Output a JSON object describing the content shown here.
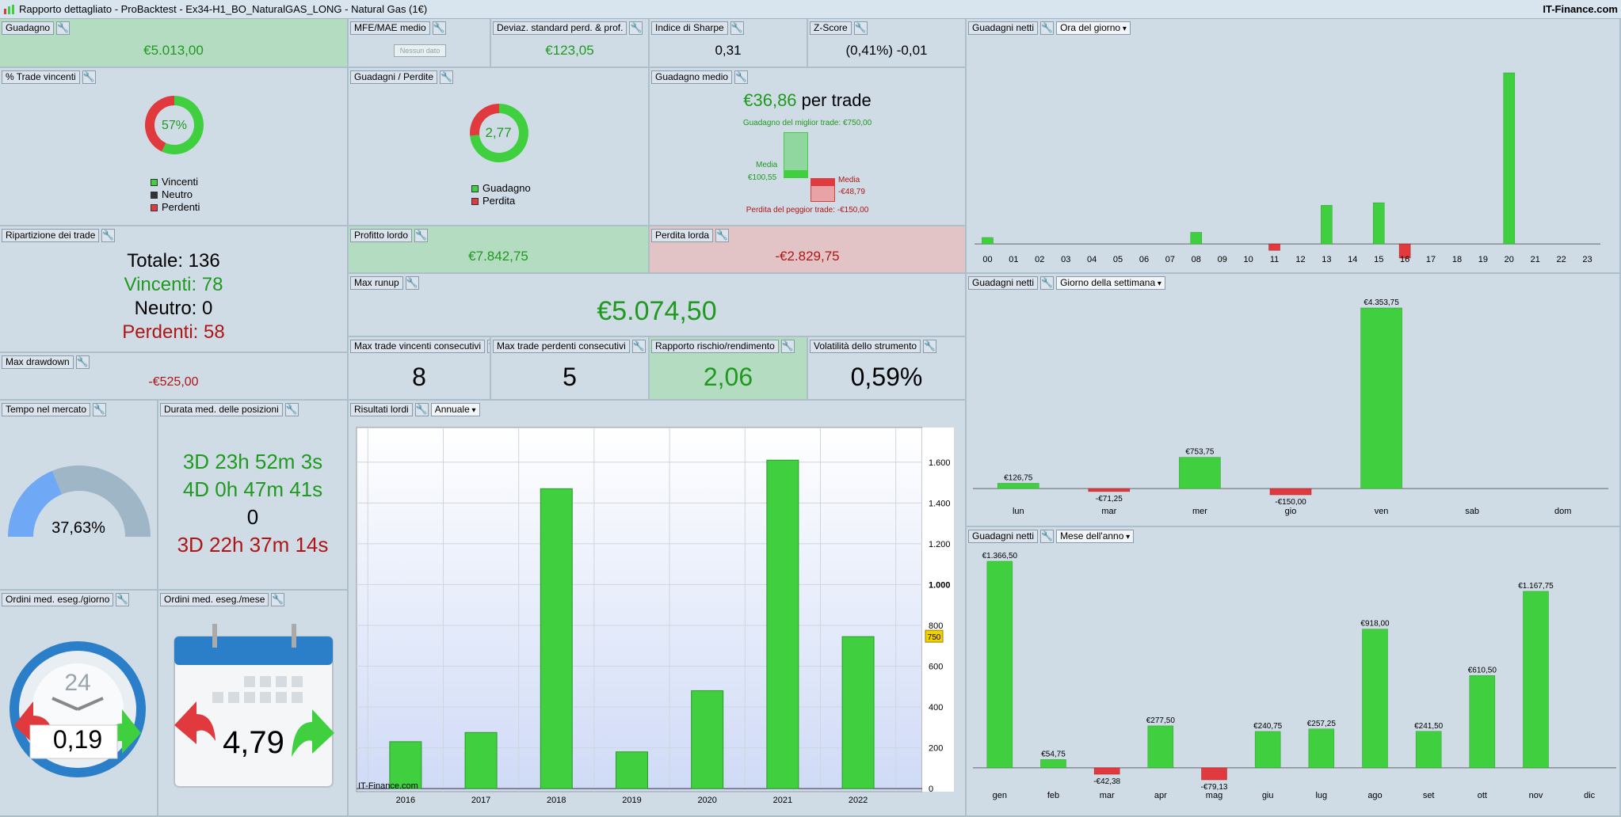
{
  "window": {
    "title": "Rapporto dettagliato - ProBacktest - Ex34-H1_BO_NaturalGAS_LONG - Natural Gas (1€)",
    "brand": "IT-Finance.com"
  },
  "colors": {
    "green": "#3fcf3f",
    "red": "#e0393e",
    "gauge_blue": "#6fa8f4",
    "gauge_gray": "#9fb6c6"
  },
  "guadagno": {
    "label": "Guadagno",
    "value": "€5.013,00"
  },
  "mfe": {
    "label": "MFE/MAE medio",
    "button": "Nessun dato"
  },
  "deviaz": {
    "label": "Deviaz. standard perd. & prof.",
    "value": "€123,05"
  },
  "sharpe": {
    "label": "Indice di Sharpe",
    "value": "0,31"
  },
  "zscore": {
    "label": "Z-Score",
    "value": "(0,41%) -0,01"
  },
  "trade_vincenti": {
    "label": "% Trade vincenti",
    "center": "57%",
    "fraction": 0.57,
    "legend": [
      "Vincenti",
      "Neutro",
      "Perdenti"
    ]
  },
  "guadagni_perdite": {
    "label": "Guadagni / Perdite",
    "center": "2,77",
    "fraction": 0.735,
    "legend": [
      "Guadagno",
      "Perdita"
    ]
  },
  "guadagno_medio": {
    "label": "Guadagno medio",
    "value": "€36,86",
    "suffix": "per trade",
    "best": "Guadagno del miglior trade: €750,00",
    "media_label": "Media",
    "media_win": "€100,55",
    "media_loss": "-€48,79",
    "worst": "Perdita del peggior trade: -€150,00"
  },
  "ripartizione": {
    "label": "Ripartizione dei trade",
    "totale": "Totale: 136",
    "vincenti": "Vincenti: 78",
    "neutro": "Neutro: 0",
    "perdenti": "Perdenti: 58"
  },
  "profitto_lordo": {
    "label": "Profitto lordo",
    "value": "€7.842,75"
  },
  "perdita_lorda": {
    "label": "Perdita lorda",
    "value": "-€2.829,75"
  },
  "max_runup": {
    "label": "Max runup",
    "value": "€5.074,50"
  },
  "max_drawdown": {
    "label": "Max drawdown",
    "value": "-€525,00"
  },
  "max_vincenti": {
    "label": "Max trade vincenti consecutivi",
    "value": "8"
  },
  "max_perdenti": {
    "label": "Max trade perdenti consecutivi",
    "value": "5"
  },
  "rischio": {
    "label": "Rapporto rischio/rendimento",
    "value": "2,06"
  },
  "volatilita": {
    "label": "Volatilità dello strumento",
    "value": "0,59%"
  },
  "tempo_mercato": {
    "label": "Tempo nel mercato",
    "value": "37,63%",
    "fraction": 0.3763
  },
  "durata": {
    "label": "Durata med. delle posizioni",
    "lines": [
      "3D 23h 52m 3s",
      "4D 0h 47m 41s",
      "0",
      "3D 22h 37m 14s"
    ]
  },
  "ordini_giorno": {
    "label": "Ordini med. eseg./giorno",
    "value": "0,19",
    "clock": "24"
  },
  "ordini_mese": {
    "label": "Ordini med. eseg./mese",
    "value": "4,79"
  },
  "hour_chart": {
    "label": "Guadagni netti",
    "dropdown": "Ora del giorno"
  },
  "week_chart": {
    "label": "Guadagni netti",
    "dropdown": "Giorno della settimana"
  },
  "month_chart": {
    "label": "Guadagni netti",
    "dropdown": "Mese dell'anno"
  },
  "annual_chart": {
    "label": "Risultati lordi",
    "dropdown": "Annuale",
    "watermark": "IT-Finance.com",
    "marker": "750"
  },
  "chart_data": [
    {
      "type": "bar",
      "title": "Guadagni netti - Ora del giorno",
      "categories": [
        "00",
        "01",
        "02",
        "03",
        "04",
        "05",
        "06",
        "07",
        "08",
        "09",
        "10",
        "11",
        "12",
        "13",
        "14",
        "15",
        "16",
        "17",
        "18",
        "19",
        "20",
        "21",
        "22",
        "23"
      ],
      "values": [
        50,
        0,
        0,
        0,
        0,
        0,
        0,
        0,
        90,
        0,
        0,
        -50,
        0,
        300,
        0,
        320,
        -110,
        0,
        0,
        0,
        1330,
        0,
        0,
        0
      ]
    },
    {
      "type": "bar",
      "title": "Guadagni netti - Giorno della settimana",
      "categories": [
        "lun",
        "mar",
        "mer",
        "gio",
        "ven",
        "sab",
        "dom"
      ],
      "values": [
        126.75,
        -71.25,
        753.75,
        -150.0,
        4353.75,
        0,
        0
      ],
      "labels": [
        "€126,75",
        "-€71,25",
        "€753,75",
        "-€150,00",
        "€4.353,75",
        "",
        ""
      ]
    },
    {
      "type": "bar",
      "title": "Guadagni netti - Mese dell'anno",
      "categories": [
        "gen",
        "feb",
        "mar",
        "apr",
        "mag",
        "giu",
        "lug",
        "ago",
        "set",
        "ott",
        "nov",
        "dic"
      ],
      "values": [
        1366.5,
        54.75,
        -42.38,
        277.5,
        -79.13,
        240.75,
        257.25,
        918.0,
        241.5,
        610.5,
        1167.75,
        0
      ],
      "labels": [
        "€1.366,50",
        "€54,75",
        "-€42,38",
        "€277,50",
        "-€79,13",
        "€240,75",
        "€257,25",
        "€918,00",
        "€241,50",
        "€610,50",
        "€1.167,75",
        ""
      ]
    },
    {
      "type": "bar",
      "title": "Risultati lordi - Annuale",
      "categories": [
        "2016",
        "2017",
        "2018",
        "2019",
        "2020",
        "2021",
        "2022"
      ],
      "values": [
        230,
        275,
        1470,
        180,
        480,
        1610,
        745
      ],
      "ylim": [
        -15,
        1770
      ],
      "yticks": [
        0,
        200,
        400,
        600,
        800,
        1000,
        1200,
        1400,
        1600
      ],
      "ytick_labels": [
        "0",
        "200",
        "400",
        "600",
        "800",
        "1.000",
        "1.200",
        "1.400",
        "1.600"
      ],
      "grid": true
    }
  ]
}
